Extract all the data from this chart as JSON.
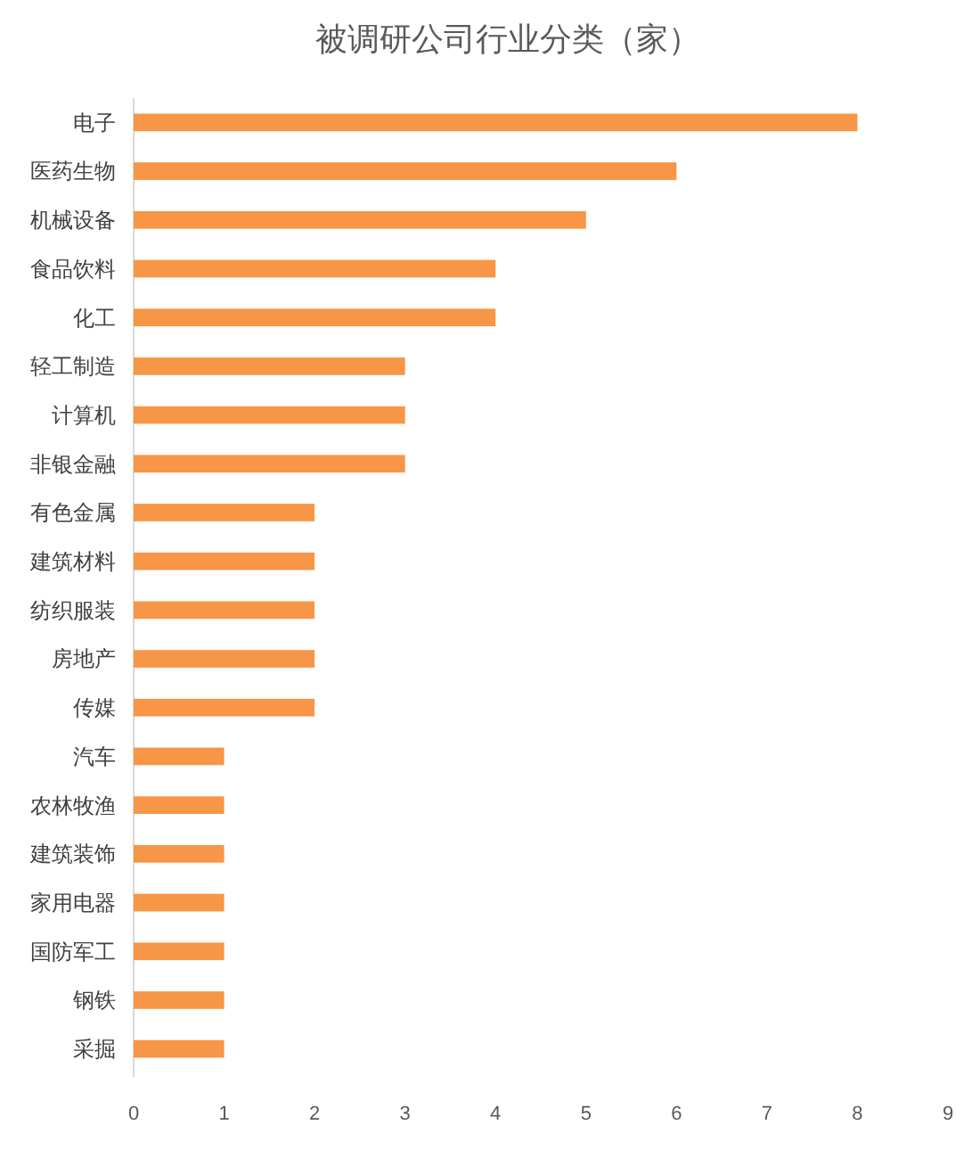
{
  "chart_data": {
    "type": "bar",
    "orientation": "horizontal",
    "title": "被调研公司行业分类（家）",
    "categories": [
      "电子",
      "医药生物",
      "机械设备",
      "食品饮料",
      "化工",
      "轻工制造",
      "计算机",
      "非银金融",
      "有色金属",
      "建筑材料",
      "纺织服装",
      "房地产",
      "传媒",
      "汽车",
      "农林牧渔",
      "建筑装饰",
      "家用电器",
      "国防军工",
      "钢铁",
      "采掘"
    ],
    "values": [
      8,
      6,
      5,
      4,
      4,
      3,
      3,
      3,
      2,
      2,
      2,
      2,
      2,
      1,
      1,
      1,
      1,
      1,
      1,
      1
    ],
    "color": "#f79646",
    "xlim": [
      0,
      9
    ],
    "xticks": [
      0,
      1,
      2,
      3,
      4,
      5,
      6,
      7,
      8,
      9
    ]
  }
}
